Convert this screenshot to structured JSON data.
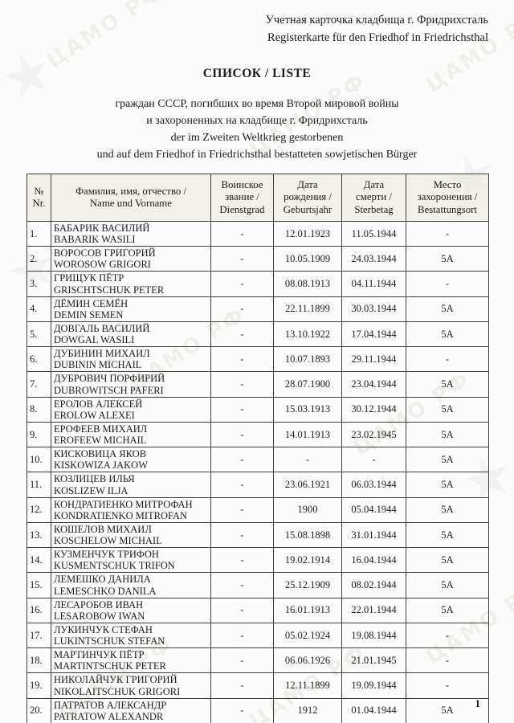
{
  "document": {
    "header_right": {
      "ru": "Учетная карточка кладбища г. Фридрихсталь",
      "de": "Registerkarte für den Friedhof in Friedrichsthal"
    },
    "title": "СПИСОК / LISTE",
    "subtitle_lines": [
      "граждан СССР, погибших во время Второй мировой войны",
      "и захороненных на кладбище г. Фридрихсталь",
      "der im Zweiten Weltkrieg gestorbenen",
      "und auf dem Friedhof in Friedrichsthal bestatteten sowjetischen Bürger"
    ],
    "page_number": "1",
    "watermark_text": "ЦАМО РФ",
    "emblem_glyph": "★"
  },
  "table": {
    "headers": [
      "№\nNr.",
      "Фамилия, имя, отчество /\nName und Vorname",
      "Воинское\nзвание /\nDienstgrad",
      "Дата\nрождения /\nGeburtsjahr",
      "Дата\nсмерти /\nSterbetag",
      "Место\nзахоронения /\nBestattungsort"
    ],
    "rows": [
      {
        "nr": "1.",
        "name_ru": "БАБАРИК ВАСИЛИЙ",
        "name_de": "BABARIK WASILI",
        "rank": "-",
        "born": "12.01.1923",
        "died": "11.05.1944",
        "place": "-"
      },
      {
        "nr": "2.",
        "name_ru": "ВОРОСОВ ГРИГОРИЙ",
        "name_de": "WOROSOW GRIGORI",
        "rank": "-",
        "born": "10.05.1909",
        "died": "24.03.1944",
        "place": "5А"
      },
      {
        "nr": "3.",
        "name_ru": "ГРИЩУК ПЁТР",
        "name_de": "GRISCHTSCHUK PETER",
        "rank": "-",
        "born": "08.08.1913",
        "died": "04.11.1944",
        "place": "-"
      },
      {
        "nr": "4.",
        "name_ru": "ДЁМИН СЕМЁН",
        "name_de": "DEMIN SEMEN",
        "rank": "-",
        "born": "22.11.1899",
        "died": "30.03.1944",
        "place": "5А"
      },
      {
        "nr": "5.",
        "name_ru": "ДОВГАЛЬ ВАСИЛИЙ",
        "name_de": "DOWGAL  WASILI",
        "rank": "-",
        "born": "13.10.1922",
        "died": "17.04.1944",
        "place": "5А"
      },
      {
        "nr": "6.",
        "name_ru": "ДУБИНИН МИХАИЛ",
        "name_de": "DUBININ MICHAIL",
        "rank": "-",
        "born": "10.07.1893",
        "died": "29.11.1944",
        "place": "-"
      },
      {
        "nr": "7.",
        "name_ru": "ДУБРОВИЧ ПОРФИРИЙ",
        "name_de": "DUBROWITSCH PAFERI",
        "rank": "-",
        "born": "28.07.1900",
        "died": "23.04.1944",
        "place": "5А"
      },
      {
        "nr": "8.",
        "name_ru": "ЕРОЛОВ АЛЕКСЕЙ",
        "name_de": "EROLOW  ALEXEI",
        "rank": "-",
        "born": "15.03.1913",
        "died": "30.12.1944",
        "place": "5А"
      },
      {
        "nr": "9.",
        "name_ru": "ЕРОФЕЕВ МИХАИЛ",
        "name_de": "EROFEEW  MICHAIL",
        "rank": "-",
        "born": "14.01.1913",
        "died": "23.02.1945",
        "place": "5А"
      },
      {
        "nr": "10.",
        "name_ru": "КИСКОВИЦА ЯКОВ",
        "name_de": "KISKOWIZA JAKOW",
        "rank": "-",
        "born": "-",
        "died": "-",
        "place": "5А"
      },
      {
        "nr": "11.",
        "name_ru": "КОЗЛИЦЕВ ИЛЬЯ",
        "name_de": "KOSLIZEW  ILJA",
        "rank": "-",
        "born": "23.06.1921",
        "died": "06.03.1944",
        "place": "5А"
      },
      {
        "nr": "12.",
        "name_ru": "КОНДРАТИЕНКО МИТРОФАН",
        "name_de": "KONDRATIENKO MITROFAN",
        "rank": "-",
        "born": "1900",
        "died": "05.04.1944",
        "place": "5А"
      },
      {
        "nr": "13.",
        "name_ru": "КОШЕЛОВ МИХАИЛ",
        "name_de": "KOSCHELOW   MICHAIL",
        "rank": "-",
        "born": "15.08.1898",
        "died": "31.01.1944",
        "place": "5А"
      },
      {
        "nr": "14.",
        "name_ru": "КУЗМЕНЧУК ТРИФОН",
        "name_de": "KUSMENTSCHUK TRIFON",
        "rank": "-",
        "born": "19.02.1914",
        "died": "16.04.1944",
        "place": "5А"
      },
      {
        "nr": "15.",
        "name_ru": "ЛЕМЕШКО ДАНИЛА",
        "name_de": "LEMESCHKO DANILA",
        "rank": "-",
        "born": "25.12.1909",
        "died": "08.02.1944",
        "place": "5А"
      },
      {
        "nr": "16.",
        "name_ru": "ЛЕСАРОБОВ ИВАН",
        "name_de": "LESAROBOW  IWAN",
        "rank": "-",
        "born": "16.01.1913",
        "died": "22.01.1944",
        "place": "5А"
      },
      {
        "nr": "17.",
        "name_ru": "ЛУКИНЧУК СТЕФАН",
        "name_de": "LUKINTSCHUK  STEFAN",
        "rank": "-",
        "born": "05.02.1924",
        "died": "19.08.1944",
        "place": "-"
      },
      {
        "nr": "18.",
        "name_ru": "МАРТИНЧУК ПЁТР",
        "name_de": "MARTINTSCHUK PETER",
        "rank": "-",
        "born": "06.06.1926",
        "died": "21.01.1945",
        "place": "-"
      },
      {
        "nr": "19.",
        "name_ru": "НИКОЛАЙЧУК ГРИГОРИЙ",
        "name_de": "NIKOLAITSCHUK   GRIGORI",
        "rank": "-",
        "born": "12.11.1899",
        "died": "19.09.1944",
        "place": "-"
      },
      {
        "nr": "20.",
        "name_ru": "ПАТРАТОВ АЛЕКСАНДР",
        "name_de": "PATRATOW ALEXANDR",
        "rank": "-",
        "born": "1912",
        "died": "01.04.1944",
        "place": "5А"
      }
    ]
  }
}
